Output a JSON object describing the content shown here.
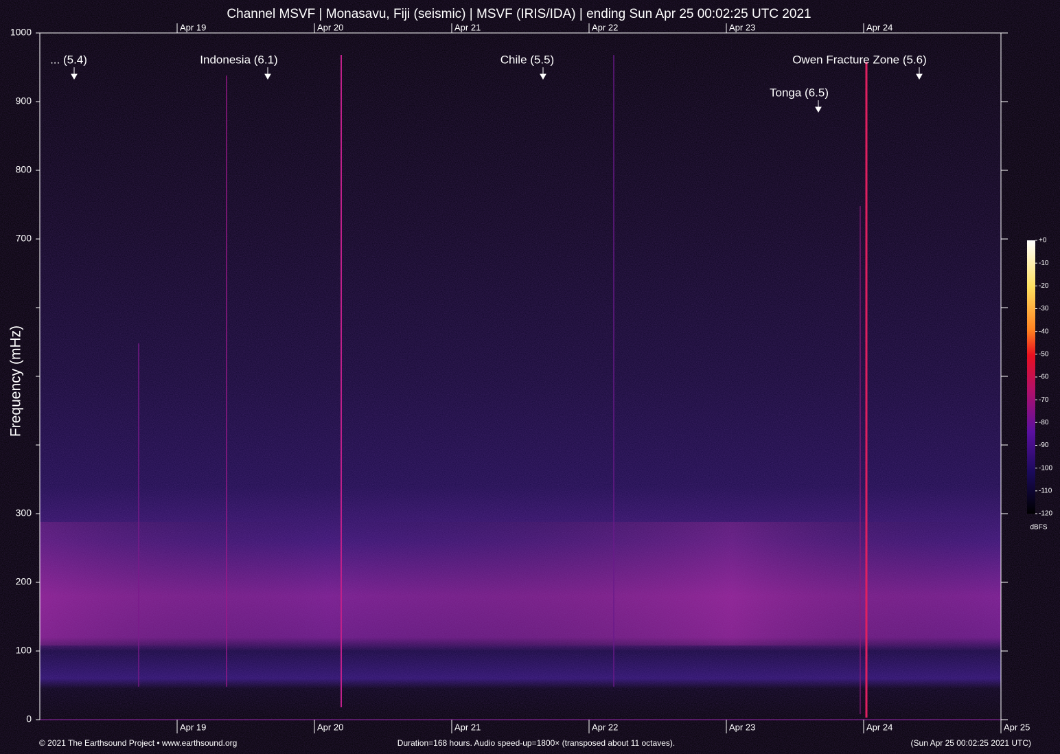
{
  "chart_data": {
    "type": "spectrogram",
    "title": "Channel MSVF | Monasavu, Fiji (seismic) | MSVF (IRIS/IDA) | ending Sun Apr 25 00:02:25 UTC 2021",
    "ylabel": "Frequency (mHz)",
    "ylim": [
      0,
      1000
    ],
    "yticks": [
      0,
      100,
      200,
      300,
      {
        "value": 400,
        "label": null
      },
      {
        "value": 500,
        "label": null
      },
      {
        "value": 600,
        "label": null
      },
      700,
      800,
      900,
      1000
    ],
    "xlim": [
      0,
      168
    ],
    "xticks": [
      {
        "value": 24,
        "label": "Apr 19"
      },
      {
        "value": 48,
        "label": "Apr 20"
      },
      {
        "value": 72,
        "label": "Apr 21"
      },
      {
        "value": 96,
        "label": "Apr 22"
      },
      {
        "value": 120,
        "label": "Apr 23"
      },
      {
        "value": 144,
        "label": "Apr 24"
      },
      {
        "value": 168,
        "label": "Apr 25"
      }
    ],
    "colorbar": {
      "label": "dBFS",
      "lim": [
        -120,
        0
      ],
      "ticks": [
        {
          "value": 0,
          "label": "+0"
        },
        -10,
        -20,
        -30,
        -40,
        -50,
        -60,
        -70,
        -80,
        -90,
        -100,
        -110,
        -120
      ]
    },
    "annotations": [
      "... (5.4)",
      "Indonesia (6.1)",
      "Chile (5.5)",
      "Owen Fracture Zone (5.6)",
      "Tonga (6.5)"
    ],
    "footer": {
      "left": "© 2021 The Earthsound Project • www.earthsound.org",
      "center": "Duration=168 hours. Audio speed-up=1800× (transposed about 11 octaves).",
      "right": "(Sun Apr 25 00:02:25 2021 UTC)"
    }
  }
}
